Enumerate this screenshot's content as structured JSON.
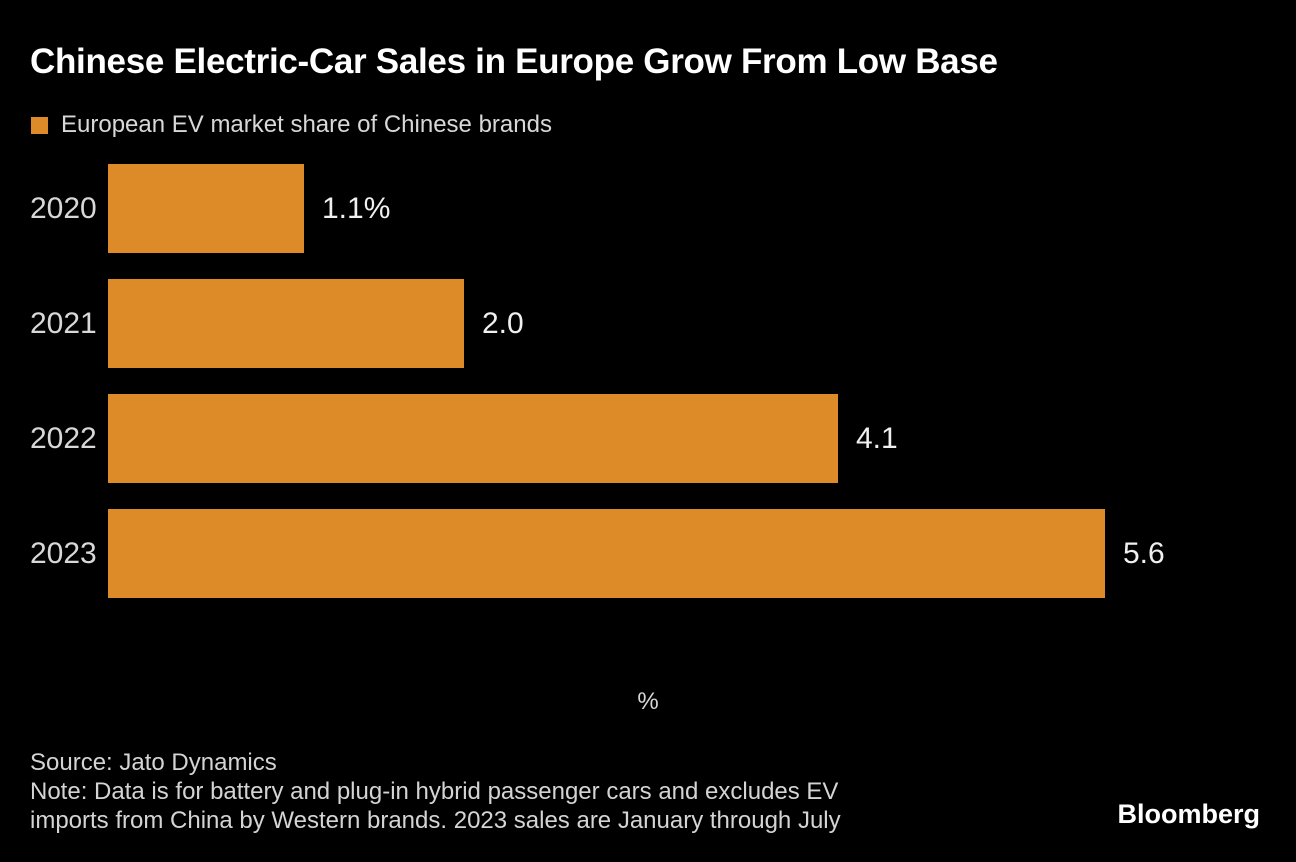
{
  "chart_data": {
    "type": "bar",
    "orientation": "horizontal",
    "title": "Chinese Electric-Car Sales in Europe Grow From Low Base",
    "legend": [
      "European EV market share of Chinese brands"
    ],
    "legend_position": "top-left",
    "categories": [
      "2020",
      "2021",
      "2022",
      "2023"
    ],
    "values": [
      1.1,
      2.0,
      4.1,
      5.6
    ],
    "value_labels": [
      "1.1%",
      "2.0",
      "4.1",
      "5.6"
    ],
    "xlabel": "%",
    "xlim": [
      0,
      6.7
    ],
    "grid": false,
    "bar_color": "#DD8B28",
    "background_color": "#000000"
  },
  "footer": {
    "source": "Source: Jato Dynamics",
    "note_lines": [
      "Note: Data is for battery and plug-in hybrid passenger cars and excludes EV",
      "imports from China by Western brands. 2023 sales are January through July"
    ],
    "logo": "Bloomberg"
  },
  "colors": {
    "background": "#000000",
    "bar": "#DD8B28",
    "title_text": "#FFFFFF",
    "label_text": "#D8D8D8",
    "value_text": "#F0F0F0"
  }
}
